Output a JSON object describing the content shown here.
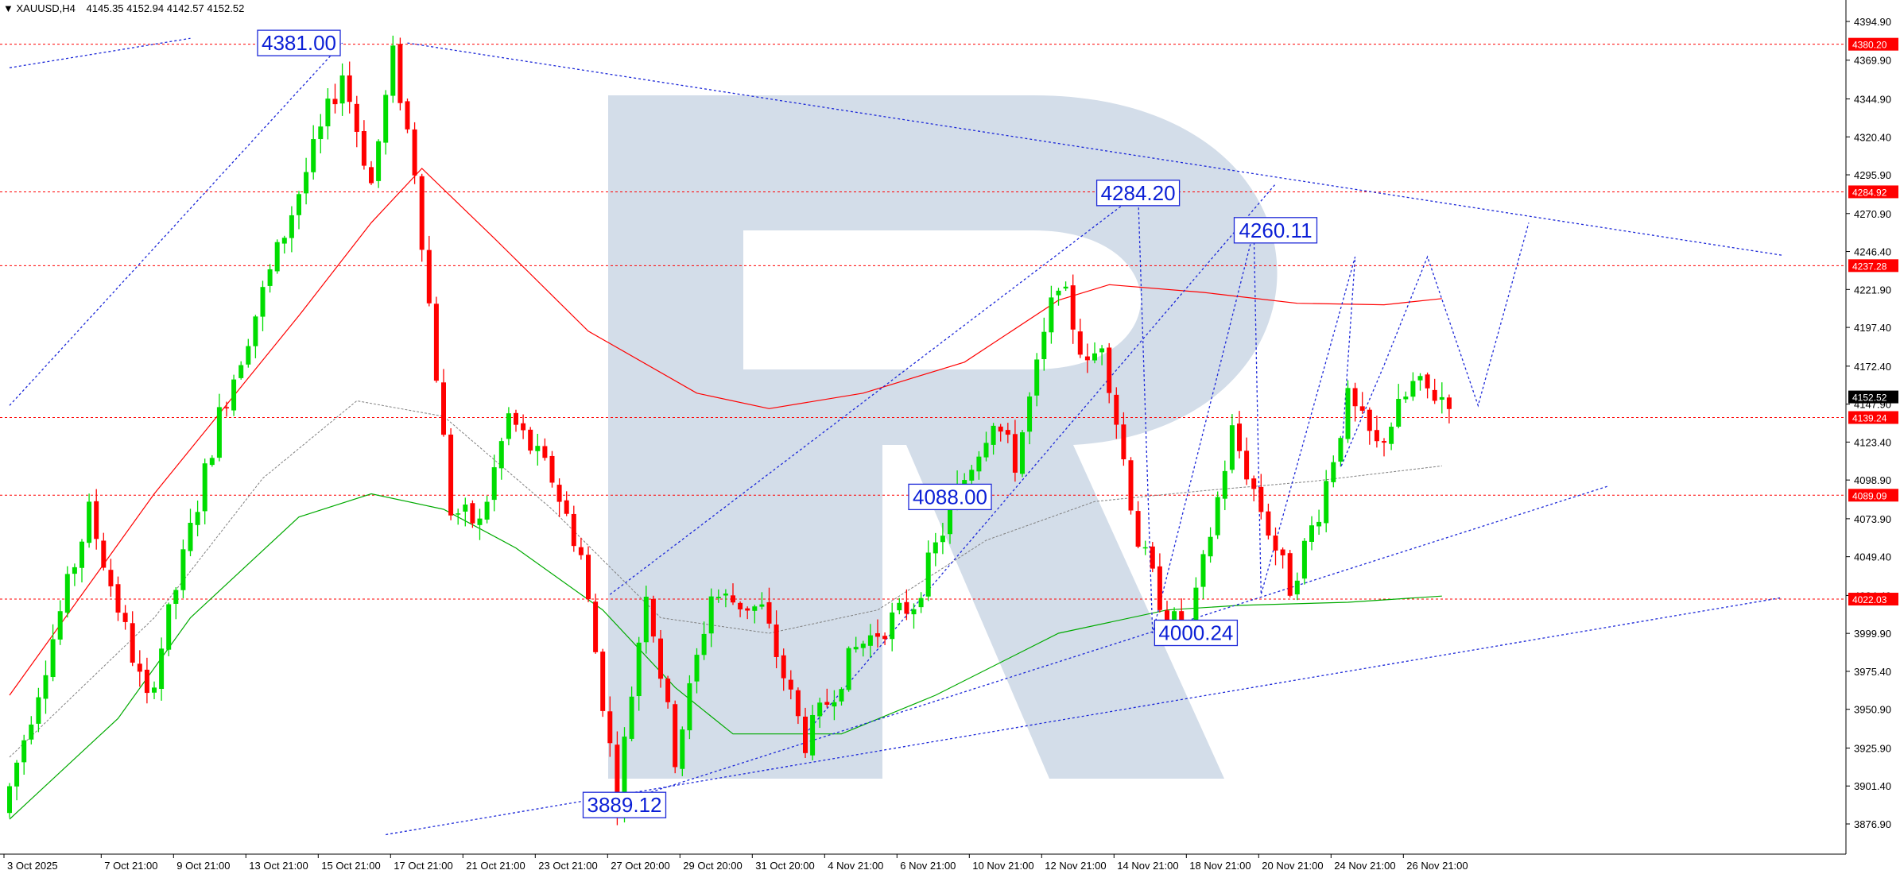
{
  "header": {
    "symbol": "XAUUSD,H4",
    "ohlc": "4145.35 4152.94 4142.57 4152.52"
  },
  "colors": {
    "bull": "#00dd00",
    "bear": "#ff0000",
    "level_line": "#ff0000",
    "ma_fast": "#ff0000",
    "ma_slow": "#00aa00",
    "ma_mid": "#808080",
    "projection": "#1c28d8",
    "current_price_bg": "#000000",
    "level_bg": "#ff0000",
    "watermark": "#d3dde9"
  },
  "chart_data": {
    "type": "candlestick",
    "instrument": "XAUUSD",
    "timeframe": "H4",
    "ylim": [
      3876.9,
      4394.9
    ],
    "y_ticks": [
      "4394.90",
      "4369.90",
      "4344.90",
      "4320.40",
      "4295.90",
      "4270.90",
      "4246.40",
      "4221.90",
      "4197.40",
      "4172.40",
      "4147.90",
      "4123.40",
      "4098.90",
      "4073.90",
      "4049.40",
      "4024.40",
      "3999.90",
      "3975.40",
      "3950.90",
      "3925.90",
      "3901.40",
      "3876.90"
    ],
    "x_ticks": [
      "3 Oct 2025",
      "7 Oct 21:00",
      "9 Oct 21:00",
      "13 Oct 21:00",
      "15 Oct 21:00",
      "17 Oct 21:00",
      "21 Oct 21:00",
      "23 Oct 21:00",
      "27 Oct 20:00",
      "29 Oct 20:00",
      "31 Oct 20:00",
      "4 Nov 21:00",
      "6 Nov 21:00",
      "10 Nov 21:00",
      "12 Nov 21:00",
      "14 Nov 21:00",
      "18 Nov 21:00",
      "20 Nov 21:00",
      "24 Nov 21:00",
      "26 Nov 21:00"
    ],
    "current_price": "4152.52",
    "levels": [
      {
        "value": 4380.2,
        "label": "4380.20"
      },
      {
        "value": 4284.92,
        "label": "4284.92"
      },
      {
        "value": 4237.28,
        "label": "4237.28"
      },
      {
        "value": 4139.24,
        "label": "4139.24"
      },
      {
        "value": 4089.09,
        "label": "4089.09"
      },
      {
        "value": 4022.03,
        "label": "4022.03"
      }
    ],
    "annotations": [
      {
        "text": "4381.00",
        "x": 40,
        "price": 4381.0
      },
      {
        "text": "4284.20",
        "x": 156,
        "price": 4284.2
      },
      {
        "text": "4260.11",
        "x": 175,
        "price": 4260.11
      },
      {
        "text": "4088.00",
        "x": 130,
        "price": 4088.0
      },
      {
        "text": "4000.24",
        "x": 164,
        "price": 4000.24
      },
      {
        "text": "3889.12",
        "x": 85,
        "price": 3889.12
      }
    ],
    "pivots": [
      {
        "bar": 0,
        "price": 3884
      },
      {
        "bar": 12,
        "price": 4078
      },
      {
        "bar": 20,
        "price": 3955
      },
      {
        "bar": 30,
        "price": 4140
      },
      {
        "bar": 40,
        "price": 4272
      },
      {
        "bar": 47,
        "price": 4362
      },
      {
        "bar": 51,
        "price": 4290
      },
      {
        "bar": 54,
        "price": 4372
      },
      {
        "bar": 57,
        "price": 4300
      },
      {
        "bar": 62,
        "price": 4080
      },
      {
        "bar": 66,
        "price": 4070
      },
      {
        "bar": 70,
        "price": 4140
      },
      {
        "bar": 76,
        "price": 4100
      },
      {
        "bar": 80,
        "price": 4050
      },
      {
        "bar": 85,
        "price": 3895
      },
      {
        "bar": 89,
        "price": 4030
      },
      {
        "bar": 93,
        "price": 3920
      },
      {
        "bar": 98,
        "price": 4025
      },
      {
        "bar": 105,
        "price": 4015
      },
      {
        "bar": 111,
        "price": 3930
      },
      {
        "bar": 118,
        "price": 3990
      },
      {
        "bar": 126,
        "price": 4020
      },
      {
        "bar": 132,
        "price": 4090
      },
      {
        "bar": 137,
        "price": 4140
      },
      {
        "bar": 140,
        "price": 4110
      },
      {
        "bar": 146,
        "price": 4230
      },
      {
        "bar": 150,
        "price": 4170
      },
      {
        "bar": 152,
        "price": 4190
      },
      {
        "bar": 157,
        "price": 4060
      },
      {
        "bar": 161,
        "price": 4010
      },
      {
        "bar": 164,
        "price": 4000
      },
      {
        "bar": 170,
        "price": 4130
      },
      {
        "bar": 174,
        "price": 4080
      },
      {
        "bar": 178,
        "price": 4030
      },
      {
        "bar": 182,
        "price": 4080
      },
      {
        "bar": 186,
        "price": 4150
      },
      {
        "bar": 190,
        "price": 4120
      },
      {
        "bar": 195,
        "price": 4160
      },
      {
        "bar": 199,
        "price": 4152.52
      }
    ],
    "ma_fast": [
      {
        "bar": 0,
        "price": 3960
      },
      {
        "bar": 20,
        "price": 4090
      },
      {
        "bar": 40,
        "price": 4205
      },
      {
        "bar": 50,
        "price": 4265
      },
      {
        "bar": 57,
        "price": 4300
      },
      {
        "bar": 67,
        "price": 4255
      },
      {
        "bar": 80,
        "price": 4195
      },
      {
        "bar": 95,
        "price": 4155
      },
      {
        "bar": 105,
        "price": 4145
      },
      {
        "bar": 118,
        "price": 4155
      },
      {
        "bar": 132,
        "price": 4175
      },
      {
        "bar": 145,
        "price": 4215
      },
      {
        "bar": 152,
        "price": 4225
      },
      {
        "bar": 165,
        "price": 4220
      },
      {
        "bar": 178,
        "price": 4213
      },
      {
        "bar": 190,
        "price": 4212
      },
      {
        "bar": 198,
        "price": 4216
      }
    ],
    "ma_slow": [
      {
        "bar": 0,
        "price": 3880
      },
      {
        "bar": 15,
        "price": 3945
      },
      {
        "bar": 25,
        "price": 4010
      },
      {
        "bar": 40,
        "price": 4075
      },
      {
        "bar": 50,
        "price": 4090
      },
      {
        "bar": 60,
        "price": 4080
      },
      {
        "bar": 70,
        "price": 4055
      },
      {
        "bar": 82,
        "price": 4015
      },
      {
        "bar": 92,
        "price": 3965
      },
      {
        "bar": 100,
        "price": 3935
      },
      {
        "bar": 115,
        "price": 3935
      },
      {
        "bar": 128,
        "price": 3960
      },
      {
        "bar": 145,
        "price": 4000
      },
      {
        "bar": 160,
        "price": 4015
      },
      {
        "bar": 170,
        "price": 4018
      },
      {
        "bar": 185,
        "price": 4020
      },
      {
        "bar": 198,
        "price": 4024
      }
    ],
    "ma_mid": [
      {
        "bar": 0,
        "price": 3920
      },
      {
        "bar": 20,
        "price": 4010
      },
      {
        "bar": 35,
        "price": 4100
      },
      {
        "bar": 48,
        "price": 4150
      },
      {
        "bar": 60,
        "price": 4140
      },
      {
        "bar": 75,
        "price": 4080
      },
      {
        "bar": 90,
        "price": 4010
      },
      {
        "bar": 105,
        "price": 4000
      },
      {
        "bar": 120,
        "price": 4015
      },
      {
        "bar": 135,
        "price": 4060
      },
      {
        "bar": 150,
        "price": 4085
      },
      {
        "bar": 165,
        "price": 4092
      },
      {
        "bar": 180,
        "price": 4098
      },
      {
        "bar": 198,
        "price": 4108
      }
    ],
    "trendlines": [
      {
        "bar1": 0,
        "p1": 4365,
        "bar2": 25,
        "p2": 4384
      },
      {
        "bar1": 0,
        "p1": 4147,
        "bar2": 46,
        "p2": 4381
      },
      {
        "bar1": 55,
        "p1": 4381,
        "bar2": 245,
        "p2": 4244
      },
      {
        "bar1": 83,
        "p1": 3889,
        "bar2": 221,
        "p2": 4095
      },
      {
        "bar1": 52,
        "p1": 3870,
        "bar2": 245,
        "p2": 4023
      },
      {
        "bar1": 83,
        "p1": 4025,
        "bar2": 156,
        "p2": 4284
      },
      {
        "bar1": 110,
        "p1": 3935,
        "bar2": 175,
        "p2": 4290
      }
    ],
    "projections": [
      [
        {
          "bar": 156,
          "price": 4284
        },
        {
          "bar": 158,
          "price": 4000
        },
        {
          "bar": 172,
          "price": 4260
        },
        {
          "bar": 173,
          "price": 4025
        },
        {
          "bar": 186,
          "price": 4243
        },
        {
          "bar": 184,
          "price": 4107
        },
        {
          "bar": 190,
          "price": 4173
        },
        {
          "bar": 196,
          "price": 4243
        },
        {
          "bar": 203,
          "price": 4147
        },
        {
          "bar": 210,
          "price": 4265
        }
      ]
    ]
  },
  "watermark": "R"
}
